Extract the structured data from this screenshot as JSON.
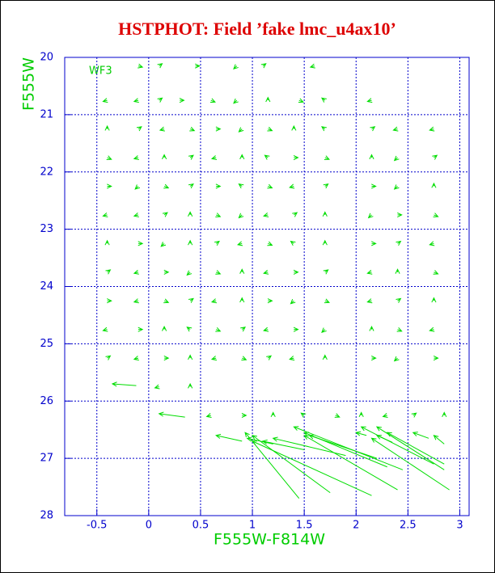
{
  "chart_data": {
    "type": "quiver",
    "title": "HSTPHOT: Field ’fake lmc_u4ax10’",
    "annotation": "WF3",
    "x_label": "F555W-F814W",
    "y_label": "F555W",
    "xlim": [
      -0.81,
      3.09
    ],
    "ylim": [
      20,
      28
    ],
    "y_inverted": true,
    "xticks": [
      -0.5,
      0,
      0.5,
      1,
      1.5,
      2,
      2.5,
      3
    ],
    "yticks": [
      20,
      21,
      22,
      23,
      24,
      25,
      26,
      27,
      28
    ],
    "grid": true,
    "color": "#00dd00",
    "x": [
      -0.1,
      0.1,
      0.45,
      0.85,
      1.1,
      1.6,
      -0.4,
      -0.1,
      0.1,
      0.3,
      0.6,
      0.85,
      1.15,
      1.45,
      1.7,
      2.15,
      -0.4,
      -0.1,
      0.15,
      0.4,
      0.65,
      0.9,
      1.15,
      1.4,
      1.7,
      2.15,
      2.4,
      2.75,
      -0.4,
      -0.1,
      0.15,
      0.4,
      0.65,
      0.9,
      1.15,
      1.4,
      1.7,
      2.15,
      2.4,
      2.75,
      -0.4,
      -0.1,
      0.15,
      0.4,
      0.65,
      0.9,
      1.15,
      1.4,
      1.7,
      2.15,
      2.4,
      2.75,
      -0.4,
      -0.1,
      0.15,
      0.4,
      0.65,
      0.9,
      1.15,
      1.4,
      1.7,
      2.15,
      2.4,
      2.75,
      -0.4,
      -0.1,
      0.15,
      0.4,
      0.65,
      0.9,
      1.15,
      1.4,
      1.7,
      2.15,
      2.4,
      2.75,
      -0.4,
      -0.1,
      0.15,
      0.4,
      0.65,
      0.9,
      1.15,
      1.4,
      1.7,
      2.15,
      2.4,
      2.75,
      -0.4,
      -0.1,
      0.15,
      0.4,
      0.65,
      0.9,
      1.15,
      1.4,
      1.7,
      2.15,
      2.4,
      2.75,
      -0.4,
      -0.1,
      0.15,
      0.4,
      0.65,
      0.9,
      1.15,
      1.4,
      1.7,
      2.15,
      2.4,
      2.75,
      -0.4,
      -0.1,
      0.15,
      0.4,
      0.65,
      0.9,
      1.15,
      1.4,
      1.7,
      2.15,
      2.4,
      2.75,
      0.1,
      0.4,
      0.6,
      0.9,
      1.2,
      1.5,
      1.8,
      2.05,
      2.3,
      2.55,
      2.85,
      1.45,
      1.75,
      2.15,
      2.4,
      2.45,
      2.3,
      2.2,
      2.9,
      2.85,
      2.85,
      2.75,
      1.9,
      1.5,
      1.2,
      0.9,
      0.35,
      -0.12,
      2.35,
      2.7,
      2.85,
      2.1
    ],
    "y": [
      20.15,
      20.15,
      20.15,
      20.15,
      20.15,
      20.15,
      20.75,
      20.75,
      20.75,
      20.75,
      20.75,
      20.75,
      20.75,
      20.75,
      20.75,
      20.75,
      21.25,
      21.25,
      21.25,
      21.25,
      21.25,
      21.25,
      21.25,
      21.25,
      21.25,
      21.25,
      21.25,
      21.25,
      21.75,
      21.75,
      21.75,
      21.75,
      21.75,
      21.75,
      21.75,
      21.75,
      21.75,
      21.75,
      21.75,
      21.75,
      22.25,
      22.25,
      22.25,
      22.25,
      22.25,
      22.25,
      22.25,
      22.25,
      22.25,
      22.25,
      22.25,
      22.25,
      22.75,
      22.75,
      22.75,
      22.75,
      22.75,
      22.75,
      22.75,
      22.75,
      22.75,
      22.75,
      22.75,
      22.75,
      23.25,
      23.25,
      23.25,
      23.25,
      23.25,
      23.25,
      23.25,
      23.25,
      23.25,
      23.25,
      23.25,
      23.25,
      23.75,
      23.75,
      23.75,
      23.75,
      23.75,
      23.75,
      23.75,
      23.75,
      23.75,
      23.75,
      23.75,
      23.75,
      24.25,
      24.25,
      24.25,
      24.25,
      24.25,
      24.25,
      24.25,
      24.25,
      24.25,
      24.25,
      24.25,
      24.25,
      24.75,
      24.75,
      24.75,
      24.75,
      24.75,
      24.75,
      24.75,
      24.75,
      24.75,
      24.75,
      24.75,
      24.75,
      25.25,
      25.25,
      25.25,
      25.25,
      25.25,
      25.25,
      25.25,
      25.25,
      25.25,
      25.25,
      25.25,
      25.25,
      25.75,
      25.75,
      26.25,
      26.25,
      26.25,
      26.25,
      26.25,
      26.25,
      26.25,
      26.25,
      26.25,
      27.7,
      27.6,
      27.65,
      27.55,
      27.2,
      27.15,
      27.0,
      27.55,
      27.2,
      27.1,
      27.1,
      26.95,
      26.85,
      26.75,
      26.7,
      26.28,
      25.73,
      26.72,
      26.65,
      26.75,
      26.6
    ],
    "u": [
      0.04,
      0.03,
      0.04,
      -0.03,
      0.03,
      -0.04,
      -0.04,
      -0.04,
      0.03,
      0.04,
      0.04,
      -0.03,
      0,
      0.04,
      -0.03,
      -0.04,
      0,
      0.03,
      -0.04,
      0.04,
      0.04,
      -0.03,
      0.04,
      0,
      -0.03,
      0.03,
      -0.04,
      -0.04,
      0.04,
      -0.04,
      0,
      0.03,
      -0.04,
      0,
      -0.03,
      0.04,
      0.04,
      0,
      -0.03,
      0.03,
      0.04,
      -0.03,
      0.04,
      0.03,
      0.04,
      -0.03,
      0.04,
      -0.04,
      0.03,
      0.04,
      -0.03,
      0,
      -0.04,
      -0.04,
      0.03,
      0,
      0.04,
      -0.03,
      -0.04,
      0.03,
      0,
      -0.03,
      0.04,
      0.04,
      0,
      0.04,
      -0.03,
      0,
      0.03,
      -0.04,
      0.04,
      -0.03,
      0,
      0.04,
      0.03,
      -0.04,
      0.03,
      -0.04,
      0.04,
      -0.03,
      0.04,
      0,
      -0.04,
      0.04,
      0.03,
      -0.04,
      0,
      0.04,
      0.04,
      -0.04,
      0.04,
      0.03,
      -0.04,
      0,
      0.04,
      -0.03,
      0.04,
      -0.04,
      0.03,
      0,
      -0.04,
      0.04,
      0,
      -0.03,
      0.04,
      0.03,
      -0.04,
      0.04,
      -0.03,
      0,
      0.04,
      -0.04,
      0.03,
      -0.04,
      0.04,
      0,
      -0.04,
      0.04,
      0.03,
      -0.04,
      0,
      0.04,
      -0.03,
      0.04,
      -0.04,
      0,
      -0.04,
      0.04,
      0,
      -0.03,
      0.04,
      0,
      -0.04,
      0.03,
      0,
      -0.52,
      -0.75,
      -1.15,
      -0.9,
      -1.05,
      -0.8,
      -0.65,
      -0.75,
      -0.65,
      -0.55,
      -0.7,
      -0.7,
      -0.4,
      -0.25,
      -0.25,
      -0.25,
      -0.23,
      -0.15,
      -0.15,
      -0.1,
      -0.1
    ],
    "v": [
      0.02,
      -0.04,
      0,
      0.05,
      -0.04,
      0.02,
      0.02,
      0.02,
      -0.04,
      0,
      0.03,
      0.05,
      -0.05,
      0.03,
      -0.04,
      0.02,
      -0.05,
      -0.04,
      0.02,
      0.03,
      0,
      0.05,
      0.03,
      -0.05,
      -0.04,
      -0.04,
      0.02,
      0.02,
      0.03,
      0.02,
      -0.05,
      -0.04,
      0.02,
      -0.05,
      -0.04,
      0,
      0.03,
      -0.05,
      0.05,
      -0.04,
      0,
      0.05,
      0.03,
      -0.04,
      0,
      -0.04,
      0.03,
      0.02,
      -0.04,
      0,
      0.05,
      -0.05,
      0.02,
      0.02,
      -0.04,
      -0.05,
      0.03,
      0.05,
      0.02,
      -0.04,
      -0.05,
      0.05,
      0,
      0.03,
      -0.05,
      0,
      0.05,
      -0.05,
      -0.04,
      0.02,
      0.03,
      -0.04,
      -0.05,
      0,
      -0.04,
      0.02,
      -0.04,
      0.02,
      0,
      0.05,
      0.03,
      -0.05,
      0.02,
      0,
      -0.04,
      0.02,
      -0.05,
      0.03,
      0,
      0.02,
      0.03,
      -0.04,
      0.02,
      -0.05,
      0,
      0.05,
      0.03,
      0.02,
      -0.04,
      -0.05,
      0.02,
      0,
      -0.05,
      -0.04,
      0.03,
      -0.04,
      0.02,
      0,
      0.05,
      -0.05,
      0.03,
      0.02,
      -0.04,
      0.02,
      0,
      -0.05,
      0.02,
      0.03,
      -0.04,
      0.02,
      -0.05,
      0,
      0.05,
      0,
      0.02,
      -0.05,
      0.02,
      0,
      -0.05,
      -0.04,
      0.03,
      -0.05,
      0.02,
      -0.04,
      -0.05,
      -1.15,
      -1.0,
      -0.95,
      -0.95,
      -0.75,
      -0.6,
      -0.4,
      -0.9,
      -0.75,
      -0.55,
      -0.65,
      -0.3,
      -0.15,
      -0.1,
      -0.1,
      -0.06,
      -0.03,
      -0.12,
      -0.1,
      -0.15,
      -0.05
    ]
  }
}
